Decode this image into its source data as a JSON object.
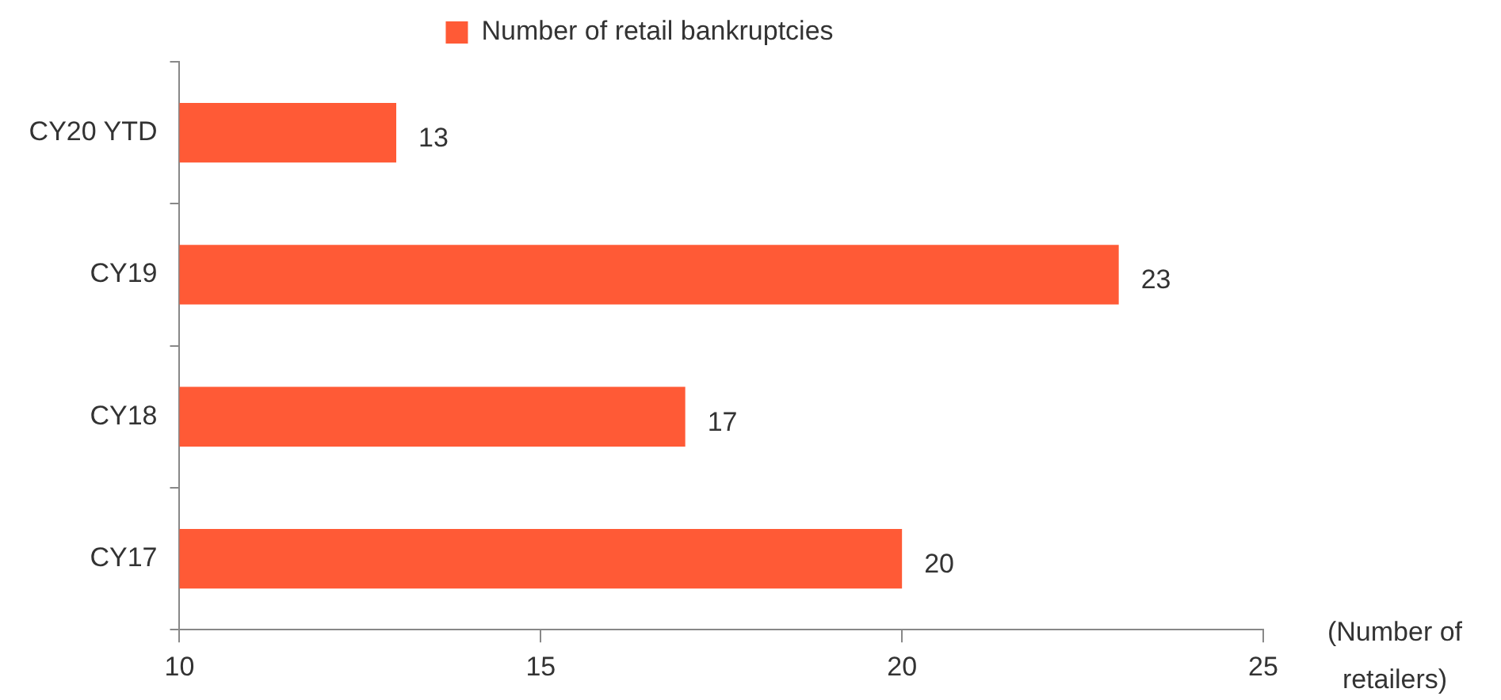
{
  "chart_data": {
    "type": "bar",
    "orientation": "horizontal",
    "categories": [
      "CY20 YTD",
      "CY19",
      "CY18",
      "CY17"
    ],
    "series": [
      {
        "name": "Number of retail bankruptcies",
        "color": "#ff5a36",
        "values": [
          13,
          23,
          17,
          20
        ]
      }
    ],
    "xlim": [
      10,
      25
    ],
    "xticks": [
      10,
      15,
      20,
      25
    ],
    "xlabel": "(Number of retailers)",
    "data_labels": true,
    "grid": false,
    "legend": "top"
  }
}
